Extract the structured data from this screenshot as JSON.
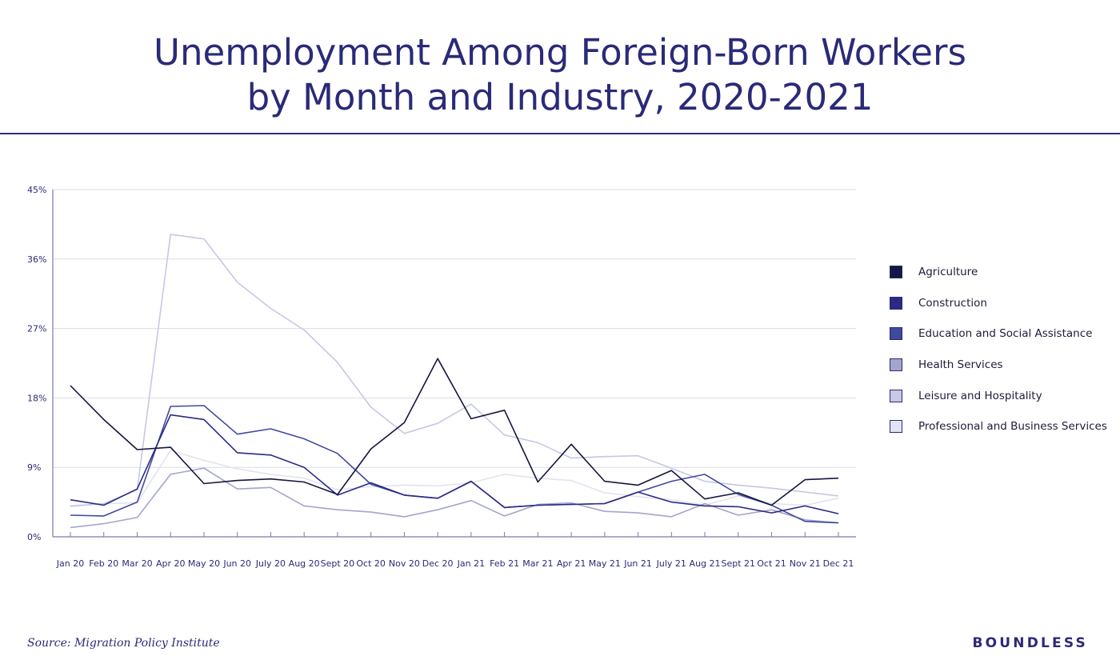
{
  "chart_data": {
    "type": "line",
    "title_lines": [
      "Unemployment Among Foreign-Born Workers",
      "by Month and Industry, 2020-2021"
    ],
    "categories": [
      "Jan 20",
      "Feb 20",
      "Mar 20",
      "Apr 20",
      "May 20",
      "Jun 20",
      "July 20",
      "Aug 20",
      "Sept 20",
      "Oct 20",
      "Nov 20",
      "Dec 20",
      "Jan 21",
      "Feb 21",
      "Mar 21",
      "Apr 21",
      "May 21",
      "Jun 21",
      "July 21",
      "Aug 21",
      "Sept 21",
      "Oct 21",
      "Nov 21",
      "Dec 21"
    ],
    "y_tick_labels": [
      "0%",
      "9%",
      "18%",
      "27%",
      "36%",
      "45%"
    ],
    "ylim": [
      0,
      45
    ],
    "grid": "horizontal",
    "legend_placement": "right",
    "series": [
      {
        "name": "Agriculture",
        "color": "#16163f",
        "values": [
          19.6,
          15.2,
          11.3,
          11.6,
          6.9,
          7.3,
          7.5,
          7.1,
          5.5,
          11.4,
          14.8,
          23.1,
          15.3,
          16.4,
          7.1,
          12.0,
          7.2,
          6.7,
          8.6,
          4.9,
          5.7,
          4.1,
          7.4,
          7.6
        ]
      },
      {
        "name": "Construction",
        "color": "#2b2b85",
        "values": [
          4.8,
          4.1,
          6.2,
          15.8,
          15.2,
          10.9,
          10.6,
          9.0,
          5.4,
          7.0,
          5.4,
          5.0,
          7.2,
          3.8,
          4.1,
          4.2,
          4.3,
          5.8,
          4.5,
          4.0,
          3.9,
          3.1,
          4.0,
          3.0
        ]
      },
      {
        "name": "Education and Social Assistance",
        "color": "#3f4a9e",
        "values": [
          2.8,
          2.7,
          4.5,
          16.9,
          17.0,
          13.3,
          14.0,
          12.7,
          10.8,
          6.8,
          5.4,
          5.0,
          7.2,
          3.8,
          4.1,
          4.2,
          4.3,
          5.8,
          7.2,
          8.1,
          5.5,
          4.1,
          2.0,
          1.8
        ]
      },
      {
        "name": "Health Services",
        "color": "#a3a5cc",
        "values": [
          1.2,
          1.7,
          2.5,
          8.1,
          8.9,
          6.2,
          6.4,
          4.0,
          3.5,
          3.2,
          2.6,
          3.5,
          4.7,
          2.7,
          4.2,
          4.4,
          3.3,
          3.1,
          2.6,
          4.3,
          2.8,
          3.5,
          2.2,
          1.8
        ]
      },
      {
        "name": "Leisure and Hospitality",
        "color": "#c6c8e4",
        "values": [
          4.0,
          4.3,
          6.1,
          39.2,
          38.6,
          33.0,
          29.6,
          26.8,
          22.6,
          16.8,
          13.4,
          14.7,
          17.2,
          13.2,
          12.2,
          10.2,
          10.4,
          10.5,
          8.9,
          7.2,
          6.7,
          6.3,
          5.8,
          5.3
        ]
      },
      {
        "name": "Professional and Business Services",
        "color": "#e2e3f0",
        "values": [
          3.9,
          4.3,
          4.4,
          11.2,
          9.9,
          8.8,
          8.1,
          7.6,
          6.1,
          6.5,
          6.7,
          6.6,
          7.0,
          8.1,
          7.6,
          7.3,
          5.7,
          5.2,
          4.8,
          4.1,
          5.3,
          4.3,
          4.1,
          5.0
        ]
      }
    ]
  },
  "source": "Source: Migration Policy Institute",
  "brand": "BOUNDLESS"
}
